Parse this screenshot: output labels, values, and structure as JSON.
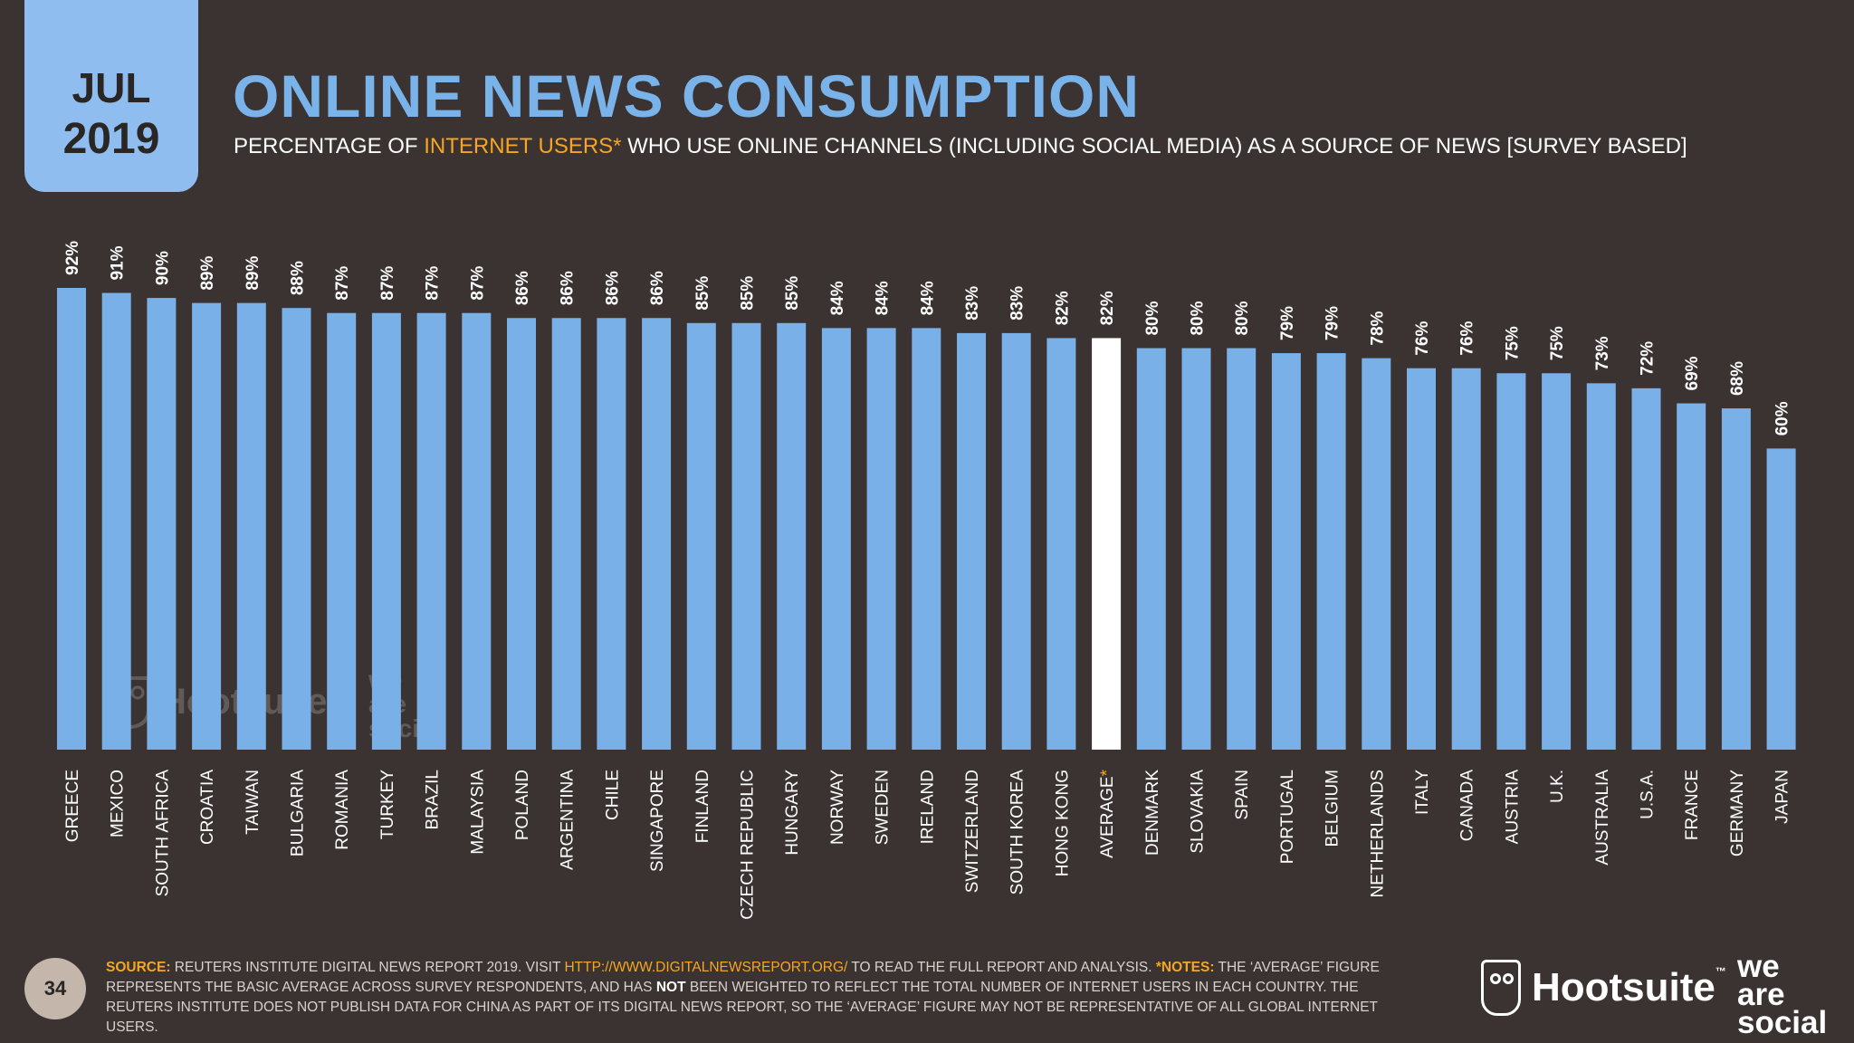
{
  "header": {
    "month": "JUL",
    "year": "2019",
    "title": "ONLINE NEWS CONSUMPTION",
    "subtitle_pre": "PERCENTAGE OF ",
    "subtitle_highlight": "INTERNET USERS*",
    "subtitle_post": " WHO USE ONLINE CHANNELS (INCLUDING SOCIAL MEDIA) AS A SOURCE OF NEWS [SURVEY BASED]"
  },
  "chart_data": {
    "type": "bar",
    "categories": [
      "GREECE",
      "MEXICO",
      "SOUTH AFRICA",
      "CROATIA",
      "TAIWAN",
      "BULGARIA",
      "ROMANIA",
      "TURKEY",
      "BRAZIL",
      "MALAYSIA",
      "POLAND",
      "ARGENTINA",
      "CHILE",
      "SINGAPORE",
      "FINLAND",
      "CZECH REPUBLIC",
      "HUNGARY",
      "NORWAY",
      "SWEDEN",
      "IRELAND",
      "SWITZERLAND",
      "SOUTH KOREA",
      "HONG KONG",
      "AVERAGE",
      "DENMARK",
      "SLOVAKIA",
      "SPAIN",
      "PORTUGAL",
      "BELGIUM",
      "NETHERLANDS",
      "ITALY",
      "CANADA",
      "AUSTRIA",
      "U.K.",
      "AUSTRALIA",
      "U.S.A.",
      "FRANCE",
      "GERMANY",
      "JAPAN"
    ],
    "values": [
      92,
      91,
      90,
      89,
      89,
      88,
      87,
      87,
      87,
      87,
      86,
      86,
      86,
      86,
      85,
      85,
      85,
      84,
      84,
      84,
      83,
      83,
      82,
      82,
      80,
      80,
      80,
      79,
      79,
      78,
      76,
      76,
      75,
      75,
      73,
      72,
      69,
      68,
      60
    ],
    "value_labels": [
      "92%",
      "91%",
      "90%",
      "89%",
      "89%",
      "88%",
      "87%",
      "87%",
      "87%",
      "87%",
      "86%",
      "86%",
      "86%",
      "86%",
      "85%",
      "85%",
      "85%",
      "84%",
      "84%",
      "84%",
      "83%",
      "83%",
      "82%",
      "82%",
      "80%",
      "80%",
      "80%",
      "79%",
      "79%",
      "78%",
      "76%",
      "76%",
      "75%",
      "75%",
      "73%",
      "72%",
      "69%",
      "68%",
      "60%"
    ],
    "highlight_category": "AVERAGE",
    "asterisk": "*",
    "ylim": [
      0,
      92
    ],
    "colors": {
      "bar": "#79b0e8",
      "highlight": "#ffffff",
      "label": "#ffffff",
      "asterisk": "#f5a623"
    },
    "grid": false,
    "title": "",
    "xlabel": "",
    "ylabel": ""
  },
  "watermark": {
    "brand": "Hootsuite",
    "was_lines": [
      "we",
      "are",
      "social"
    ]
  },
  "footer": {
    "page_number": "34",
    "source_label": "SOURCE:",
    "source_text_1": " REUTERS INSTITUTE DIGITAL NEWS REPORT 2019. VISIT ",
    "source_url": "HTTP://WWW.DIGITALNEWSREPORT.ORG/",
    "source_text_2": " TO READ THE FULL REPORT AND ANALYSIS. ",
    "notes_label": "*NOTES:",
    "notes_text_1": " THE ‘AVERAGE’ FIGURE REPRESENTS THE BASIC AVERAGE ACROSS SURVEY RESPONDENTS, AND HAS ",
    "notes_bold": "NOT",
    "notes_text_2": " BEEN WEIGHTED TO REFLECT THE TOTAL NUMBER OF INTERNET USERS IN EACH COUNTRY. THE REUTERS INSTITUTE DOES NOT PUBLISH DATA FOR CHINA AS PART OF ITS DIGITAL NEWS REPORT, SO THE ‘AVERAGE’ FIGURE MAY NOT BE REPRESENTATIVE OF ALL GLOBAL INTERNET USERS."
  },
  "brand": {
    "hootsuite": "Hootsuite",
    "tm": "™",
    "was_lines": [
      "we",
      "are",
      "social"
    ]
  }
}
